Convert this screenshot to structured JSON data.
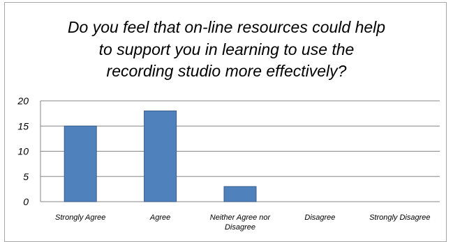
{
  "chart_data": {
    "type": "bar",
    "title_lines": [
      "Do you feel that on-line resources could help",
      "to support you in learning to use the",
      "recording studio more effectively?"
    ],
    "categories": [
      [
        "Strongly Agree"
      ],
      [
        "Agree"
      ],
      [
        "Neither Agree nor",
        "Disagree"
      ],
      [
        "Disagree"
      ],
      [
        "Strongly Disagree"
      ]
    ],
    "values": [
      15,
      18,
      3,
      0,
      0
    ],
    "yticks": [
      "0",
      "5",
      "10",
      "15",
      "20"
    ],
    "ylim": [
      0,
      20
    ],
    "grid": true,
    "legend": "none",
    "colors": {
      "bar_fill": "#4f81bd",
      "bar_stroke": "#385d8a",
      "grid": "#868686",
      "axis": "#868686"
    }
  }
}
